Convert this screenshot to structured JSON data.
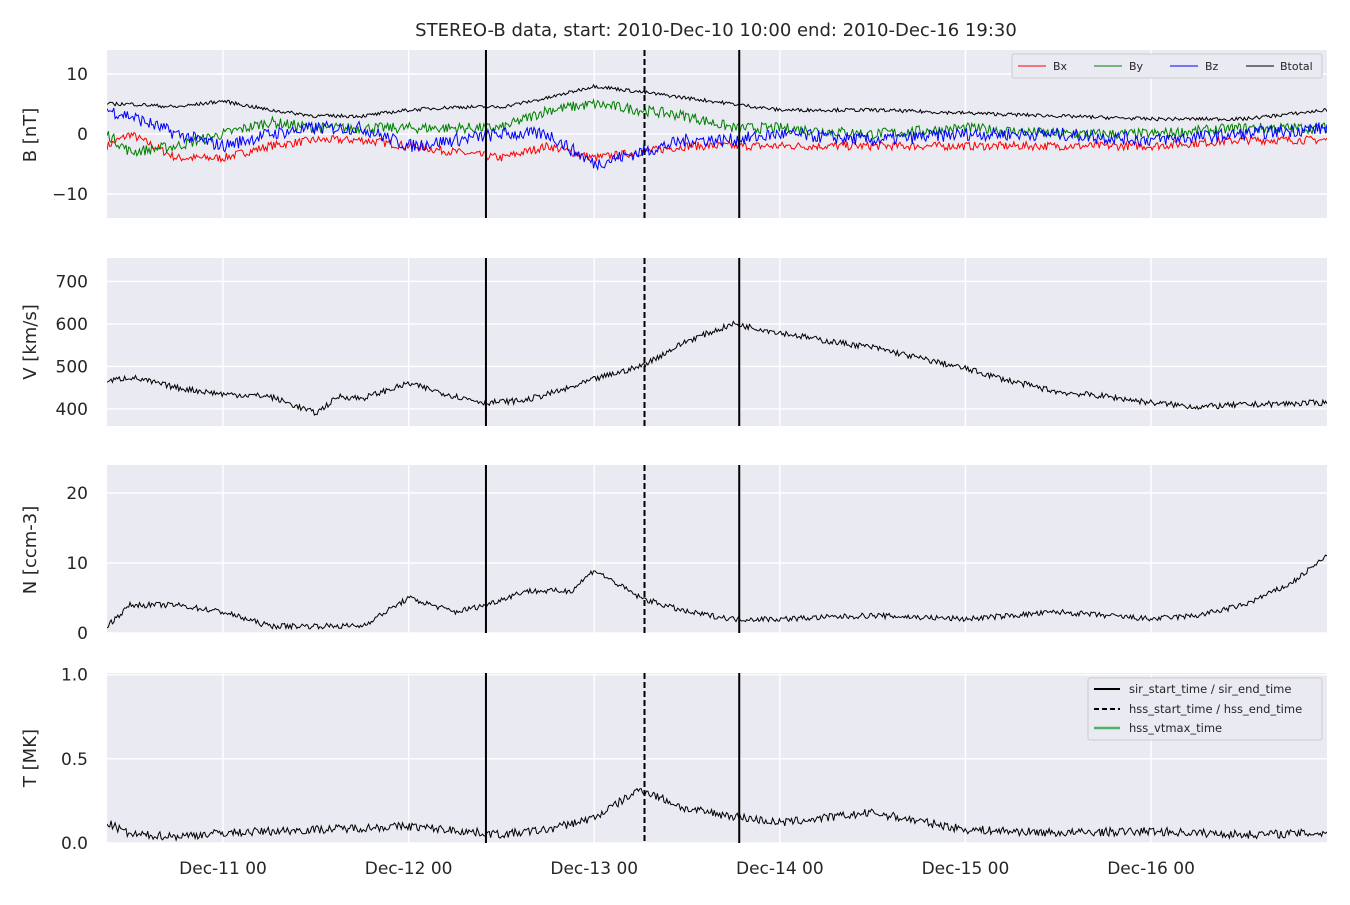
{
  "figure": {
    "title": "STEREO-B data, start: 2010-Dec-10 10:00  end: 2010-Dec-16 19:30"
  },
  "colors": {
    "panel_background": "#EAEAF2",
    "grid": "#FFFFFF",
    "Bx": "#FF0000",
    "By": "#008000",
    "Bz": "#0000FF",
    "Btotal": "#000000",
    "data_line": "#000000",
    "vtmax_line": "#4DAF6A"
  },
  "chart_data": [
    {
      "type": "line",
      "id": "mag",
      "ylabel": "B [nT]",
      "ylim": [
        -14,
        14
      ],
      "yticks": [
        -10,
        0,
        10
      ],
      "ytick_labels": [
        "−10",
        "0",
        "10"
      ],
      "x_range": [
        "2010-12-10 09:00",
        "2010-12-16 22:45"
      ],
      "legend_position": "top-right",
      "legend": [
        "Bx",
        "By",
        "Bz",
        "Btotal"
      ],
      "series": [
        {
          "name": "Bx",
          "color": "#FF0000",
          "x": [
            "2010-12-10 09:00",
            "2010-12-10 12:00",
            "2010-12-10 18:00",
            "2010-12-11 00:00",
            "2010-12-11 06:00",
            "2010-12-11 12:00",
            "2010-12-11 18:00",
            "2010-12-12 00:00",
            "2010-12-12 06:00",
            "2010-12-12 12:00",
            "2010-12-12 18:00",
            "2010-12-13 00:00",
            "2010-12-13 06:00",
            "2010-12-13 12:00",
            "2010-12-13 18:00",
            "2010-12-14 00:00",
            "2010-12-14 12:00",
            "2010-12-15 00:00",
            "2010-12-15 12:00",
            "2010-12-16 00:00",
            "2010-12-16 12:00",
            "2010-12-16 22:45"
          ],
          "values": [
            -2,
            0,
            -4,
            -4,
            -2,
            -1,
            -1,
            -2,
            -3,
            -4,
            -2,
            -4,
            -3,
            -2,
            -2,
            -2,
            -2,
            -2,
            -2,
            -2,
            -1,
            -1
          ]
        },
        {
          "name": "By",
          "color": "#008000",
          "x": [
            "2010-12-10 09:00",
            "2010-12-10 12:00",
            "2010-12-10 18:00",
            "2010-12-11 00:00",
            "2010-12-11 06:00",
            "2010-12-11 12:00",
            "2010-12-11 18:00",
            "2010-12-12 00:00",
            "2010-12-12 06:00",
            "2010-12-12 12:00",
            "2010-12-12 18:00",
            "2010-12-13 00:00",
            "2010-12-13 06:00",
            "2010-12-13 12:00",
            "2010-12-13 18:00",
            "2010-12-14 00:00",
            "2010-12-14 12:00",
            "2010-12-15 00:00",
            "2010-12-15 12:00",
            "2010-12-16 00:00",
            "2010-12-16 12:00",
            "2010-12-16 22:45"
          ],
          "values": [
            0,
            -3,
            -2,
            0,
            2,
            1,
            1,
            1,
            1,
            1,
            4,
            5,
            4,
            3,
            1,
            1,
            0,
            1,
            0,
            0,
            1,
            1
          ]
        },
        {
          "name": "Bz",
          "color": "#0000FF",
          "x": [
            "2010-12-10 09:00",
            "2010-12-10 12:00",
            "2010-12-10 18:00",
            "2010-12-11 00:00",
            "2010-12-11 06:00",
            "2010-12-11 12:00",
            "2010-12-11 18:00",
            "2010-12-12 00:00",
            "2010-12-12 06:00",
            "2010-12-12 12:00",
            "2010-12-12 18:00",
            "2010-12-13 00:00",
            "2010-12-13 06:00",
            "2010-12-13 12:00",
            "2010-12-13 18:00",
            "2010-12-14 00:00",
            "2010-12-14 12:00",
            "2010-12-15 00:00",
            "2010-12-15 12:00",
            "2010-12-16 00:00",
            "2010-12-16 12:00",
            "2010-12-16 22:45"
          ],
          "values": [
            4,
            3,
            0,
            -2,
            0,
            1,
            1,
            -2,
            -1,
            0,
            0,
            -5,
            -3,
            -1,
            -1,
            0,
            -1,
            0,
            0,
            -1,
            0,
            1
          ]
        },
        {
          "name": "Btotal",
          "color": "#000000",
          "x": [
            "2010-12-10 09:00",
            "2010-12-10 12:00",
            "2010-12-10 18:00",
            "2010-12-11 00:00",
            "2010-12-11 06:00",
            "2010-12-11 12:00",
            "2010-12-11 18:00",
            "2010-12-12 00:00",
            "2010-12-12 06:00",
            "2010-12-12 12:00",
            "2010-12-12 18:00",
            "2010-12-13 00:00",
            "2010-12-13 06:00",
            "2010-12-13 12:00",
            "2010-12-13 18:00",
            "2010-12-14 00:00",
            "2010-12-14 12:00",
            "2010-12-15 00:00",
            "2010-12-15 12:00",
            "2010-12-16 00:00",
            "2010-12-16 12:00",
            "2010-12-16 22:45"
          ],
          "values": [
            5,
            5,
            4.5,
            5.5,
            4,
            3,
            3,
            4,
            4.5,
            4.5,
            6,
            8,
            7,
            6,
            5,
            4,
            4,
            3.5,
            3,
            2.5,
            2.5,
            4
          ]
        }
      ],
      "noise": [
        0.7,
        0.9,
        1.1,
        0.3
      ]
    },
    {
      "type": "line",
      "id": "speed",
      "ylabel": "V [km/s]",
      "ylim": [
        360,
        755
      ],
      "yticks": [
        400,
        500,
        600,
        700
      ],
      "ytick_labels": [
        "400",
        "500",
        "600",
        "700"
      ],
      "x_range": [
        "2010-12-10 09:00",
        "2010-12-16 22:45"
      ],
      "series": [
        {
          "name": "",
          "color": "#000000",
          "x": [
            "2010-12-10 09:00",
            "2010-12-10 12:00",
            "2010-12-10 18:00",
            "2010-12-11 00:00",
            "2010-12-11 06:00",
            "2010-12-11 12:00",
            "2010-12-11 15:00",
            "2010-12-11 18:00",
            "2010-12-12 00:00",
            "2010-12-12 06:00",
            "2010-12-12 10:00",
            "2010-12-12 15:00",
            "2010-12-12 21:00",
            "2010-12-13 00:00",
            "2010-12-13 06:00",
            "2010-12-13 12:00",
            "2010-12-13 18:00",
            "2010-12-14 00:00",
            "2010-12-14 06:00",
            "2010-12-14 12:00",
            "2010-12-14 18:00",
            "2010-12-15 00:00",
            "2010-12-15 06:00",
            "2010-12-15 12:00",
            "2010-12-15 18:00",
            "2010-12-16 00:00",
            "2010-12-16 06:00",
            "2010-12-16 12:00",
            "2010-12-16 22:45"
          ],
          "values": [
            465,
            475,
            450,
            435,
            430,
            390,
            430,
            425,
            460,
            430,
            415,
            420,
            450,
            470,
            500,
            560,
            600,
            580,
            560,
            545,
            520,
            495,
            465,
            440,
            430,
            415,
            405,
            410,
            415
          ]
        }
      ],
      "noise": [
        7
      ]
    },
    {
      "type": "line",
      "id": "density",
      "ylabel": "N [ccm-3]",
      "ylim": [
        0,
        24
      ],
      "yticks": [
        0,
        10,
        20
      ],
      "ytick_labels": [
        "0",
        "10",
        "20"
      ],
      "x_range": [
        "2010-12-10 09:00",
        "2010-12-16 22:45"
      ],
      "series": [
        {
          "name": "",
          "color": "#000000",
          "x": [
            "2010-12-10 09:00",
            "2010-12-10 12:00",
            "2010-12-10 18:00",
            "2010-12-11 00:00",
            "2010-12-11 06:00",
            "2010-12-11 12:00",
            "2010-12-11 15:00",
            "2010-12-11 18:00",
            "2010-12-12 00:00",
            "2010-12-12 06:00",
            "2010-12-12 10:00",
            "2010-12-12 15:00",
            "2010-12-12 21:00",
            "2010-12-13 00:00",
            "2010-12-13 06:00",
            "2010-12-13 12:00",
            "2010-12-13 18:00",
            "2010-12-14 00:00",
            "2010-12-14 12:00",
            "2010-12-15 00:00",
            "2010-12-15 12:00",
            "2010-12-16 00:00",
            "2010-12-16 06:00",
            "2010-12-16 12:00",
            "2010-12-16 18:00",
            "2010-12-16 22:45"
          ],
          "values": [
            1,
            4,
            4,
            3,
            1,
            1,
            1,
            1,
            5,
            3,
            4,
            6,
            6,
            9,
            5,
            3,
            2,
            2,
            2.5,
            2,
            3,
            2,
            2.5,
            4,
            7,
            11
          ]
        }
      ],
      "noise": [
        0.4
      ]
    },
    {
      "type": "line",
      "id": "temperature",
      "ylabel": "T [MK]",
      "ylim": [
        0,
        1.01
      ],
      "yticks": [
        0,
        0.5,
        1.0
      ],
      "ytick_labels": [
        "0.0",
        "0.5",
        "1.0"
      ],
      "xticks": [
        "2010-12-11 00:00",
        "2010-12-12 00:00",
        "2010-12-13 00:00",
        "2010-12-14 00:00",
        "2010-12-15 00:00",
        "2010-12-16 00:00"
      ],
      "xtick_labels": [
        "Dec-11 00",
        "Dec-12 00",
        "Dec-13 00",
        "Dec-14 00",
        "Dec-15 00",
        "Dec-16 00"
      ],
      "x_range": [
        "2010-12-10 09:00",
        "2010-12-16 22:45"
      ],
      "legend_position": "top-right",
      "legend": [
        "sir_start_time / sir_end_time",
        "hss_start_time / hss_end_time",
        "hss_vtmax_time"
      ],
      "series": [
        {
          "name": "",
          "color": "#000000",
          "x": [
            "2010-12-10 09:00",
            "2010-12-10 12:00",
            "2010-12-10 18:00",
            "2010-12-11 00:00",
            "2010-12-11 12:00",
            "2010-12-12 00:00",
            "2010-12-12 12:00",
            "2010-12-12 18:00",
            "2010-12-13 00:00",
            "2010-12-13 06:00",
            "2010-12-13 12:00",
            "2010-12-14 00:00",
            "2010-12-14 12:00",
            "2010-12-15 00:00",
            "2010-12-15 12:00",
            "2010-12-16 00:00",
            "2010-12-16 12:00",
            "2010-12-16 22:45"
          ],
          "values": [
            0.12,
            0.05,
            0.04,
            0.06,
            0.08,
            0.1,
            0.05,
            0.08,
            0.15,
            0.32,
            0.2,
            0.12,
            0.18,
            0.08,
            0.06,
            0.07,
            0.05,
            0.06
          ]
        }
      ],
      "noise": [
        0.025
      ]
    }
  ],
  "events": {
    "sir_start_time": "2010-12-12 10:00",
    "hss_start_time": "2010-12-13 06:30",
    "sir_end_time": "2010-12-13 18:45"
  }
}
